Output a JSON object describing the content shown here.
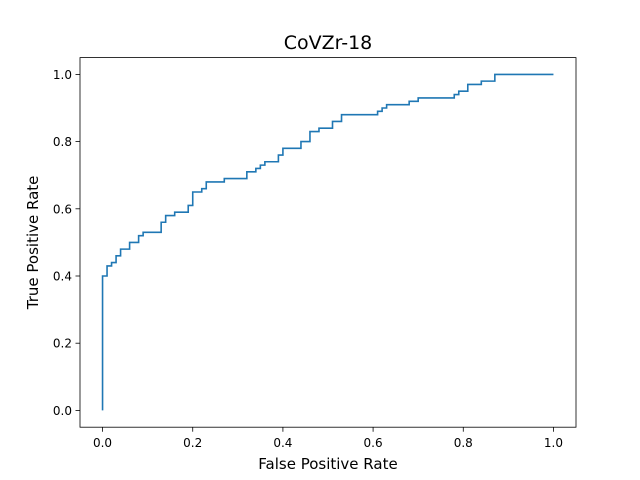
{
  "chart_data": {
    "type": "line",
    "title": "CoVZr-18",
    "xlabel": "False Positive Rate",
    "ylabel": "True Positive Rate",
    "xlim": [
      -0.05,
      1.05
    ],
    "ylim": [
      -0.05,
      1.05
    ],
    "xticks": [
      0.0,
      0.2,
      0.4,
      0.6,
      0.8,
      1.0
    ],
    "yticks": [
      0.0,
      0.2,
      0.4,
      0.6,
      0.8,
      1.0
    ],
    "xtick_labels": [
      "0.0",
      "0.2",
      "0.4",
      "0.6",
      "0.8",
      "1.0"
    ],
    "ytick_labels": [
      "0.0",
      "0.2",
      "0.4",
      "0.6",
      "0.8",
      "1.0"
    ],
    "grid": false,
    "line_color": "#1f77b4",
    "series": [
      {
        "x": [
          0.0,
          0.0,
          0.0,
          0.01,
          0.01,
          0.02,
          0.02,
          0.03,
          0.03,
          0.04,
          0.04,
          0.06,
          0.06,
          0.08,
          0.08,
          0.09,
          0.09,
          0.13,
          0.13,
          0.14,
          0.14,
          0.16,
          0.16,
          0.19,
          0.19,
          0.2,
          0.2,
          0.22,
          0.22,
          0.23,
          0.23,
          0.27,
          0.27,
          0.32,
          0.32,
          0.34,
          0.34,
          0.35,
          0.35,
          0.36,
          0.36,
          0.39,
          0.39,
          0.4,
          0.4,
          0.44,
          0.44,
          0.46,
          0.46,
          0.48,
          0.48,
          0.51,
          0.51,
          0.53,
          0.53,
          0.61,
          0.61,
          0.62,
          0.62,
          0.63,
          0.63,
          0.68,
          0.68,
          0.7,
          0.7,
          0.78,
          0.78,
          0.79,
          0.79,
          0.81,
          0.81,
          0.84,
          0.84,
          0.87,
          0.87,
          1.0
        ],
        "y": [
          0.0,
          0.0,
          0.4,
          0.4,
          0.43,
          0.43,
          0.44,
          0.44,
          0.46,
          0.46,
          0.48,
          0.48,
          0.5,
          0.5,
          0.52,
          0.52,
          0.53,
          0.53,
          0.56,
          0.56,
          0.58,
          0.58,
          0.59,
          0.59,
          0.61,
          0.61,
          0.65,
          0.65,
          0.66,
          0.66,
          0.68,
          0.68,
          0.69,
          0.69,
          0.71,
          0.71,
          0.72,
          0.72,
          0.73,
          0.73,
          0.74,
          0.74,
          0.76,
          0.76,
          0.78,
          0.78,
          0.8,
          0.8,
          0.83,
          0.83,
          0.84,
          0.84,
          0.86,
          0.86,
          0.88,
          0.88,
          0.89,
          0.89,
          0.9,
          0.9,
          0.91,
          0.91,
          0.92,
          0.92,
          0.93,
          0.93,
          0.94,
          0.94,
          0.95,
          0.95,
          0.97,
          0.97,
          0.98,
          0.98,
          1.0,
          1.0
        ]
      }
    ]
  }
}
